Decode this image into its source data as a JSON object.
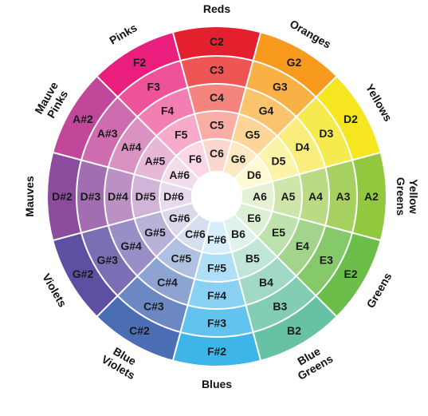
{
  "wheel": {
    "families": [
      {
        "label": "Reds",
        "label_lines": [
          "Reds"
        ],
        "notes": [
          "C2",
          "C3",
          "C4",
          "C5",
          "C6"
        ],
        "colors": [
          "#E4202F",
          "#EE5656",
          "#F5847E",
          "#F8ADA5",
          "#FBD6CF"
        ]
      },
      {
        "label": "Oranges",
        "label_lines": [
          "Oranges"
        ],
        "notes": [
          "G2",
          "G3",
          "G4",
          "G5",
          "G6"
        ],
        "colors": [
          "#F79A1E",
          "#F9B146",
          "#FAC36E",
          "#FCD597",
          "#FDE8C4"
        ]
      },
      {
        "label": "Yellows",
        "label_lines": [
          "Yellows"
        ],
        "notes": [
          "D2",
          "D3",
          "D4",
          "D5",
          "D6"
        ],
        "colors": [
          "#F5E61F",
          "#F7EA4E",
          "#F9EE7C",
          "#FBF3A7",
          "#FDF9D3"
        ]
      },
      {
        "label": "Yellow Greens",
        "label_lines": [
          "Yellow",
          "Greens"
        ],
        "notes": [
          "A2",
          "A3",
          "A4",
          "A5",
          "A6"
        ],
        "colors": [
          "#92C83E",
          "#A6D161",
          "#BADB84",
          "#CEE6A9",
          "#E4F1D2"
        ]
      },
      {
        "label": "Greens",
        "label_lines": [
          "Greens"
        ],
        "notes": [
          "E2",
          "E3",
          "E4",
          "E5",
          "E6"
        ],
        "colors": [
          "#6BBE4A",
          "#86C96A",
          "#A2D58B",
          "#BEE2AE",
          "#DDF0D5"
        ]
      },
      {
        "label": "Blue Greens",
        "label_lines": [
          "Blue",
          "Greens"
        ],
        "notes": [
          "B2",
          "B3",
          "B4",
          "B5",
          "B6"
        ],
        "colors": [
          "#66C1A5",
          "#83CDB5",
          "#A1D9C6",
          "#C0E6D8",
          "#DFF2EB"
        ]
      },
      {
        "label": "Blues",
        "label_lines": [
          "Blues"
        ],
        "notes": [
          "F#2",
          "F#3",
          "F#4",
          "F#5",
          "F#6"
        ],
        "colors": [
          "#3DB5E9",
          "#62C3EE",
          "#88D1F2",
          "#AFDFF6",
          "#D7EFFB"
        ]
      },
      {
        "label": "Blue Violets",
        "label_lines": [
          "Blue",
          "Violets"
        ],
        "notes": [
          "C#2",
          "C#3",
          "C#4",
          "C#5",
          "C#6"
        ],
        "colors": [
          "#4A6DB4",
          "#6B88C3",
          "#8DA3D2",
          "#B0C0E0",
          "#D6DFEF"
        ]
      },
      {
        "label": "Violets",
        "label_lines": [
          "Violets"
        ],
        "notes": [
          "G#2",
          "G#3",
          "G#4",
          "G#5",
          "G#6"
        ],
        "colors": [
          "#5E4FA2",
          "#7B6EB4",
          "#998FC6",
          "#B9B2D8",
          "#DBD8EB"
        ]
      },
      {
        "label": "Mauves",
        "label_lines": [
          "Mauves"
        ],
        "notes": [
          "D#2",
          "D#3",
          "D#4",
          "D#5",
          "D#6"
        ],
        "colors": [
          "#8C4C9E",
          "#A36DB1",
          "#BA90C5",
          "#D2B4D9",
          "#E8D9EC"
        ]
      },
      {
        "label": "Mauve Pinks",
        "label_lines": [
          "Mauve",
          "Pinks"
        ],
        "notes": [
          "A#2",
          "A#3",
          "A#4",
          "A#5",
          "A#6"
        ],
        "colors": [
          "#C0479A",
          "#CD6DAF",
          "#DA92C3",
          "#E6B7D7",
          "#F2DBEB"
        ]
      },
      {
        "label": "Pinks",
        "label_lines": [
          "Pinks"
        ],
        "notes": [
          "F2",
          "F3",
          "F4",
          "F5",
          "F6"
        ],
        "colors": [
          "#E91E7D",
          "#EE5298",
          "#F37FB2",
          "#F7ABCB",
          "#FBD6E5"
        ]
      }
    ],
    "center_color": "#FFFFFF",
    "divider_color": "#FFFFFF"
  }
}
